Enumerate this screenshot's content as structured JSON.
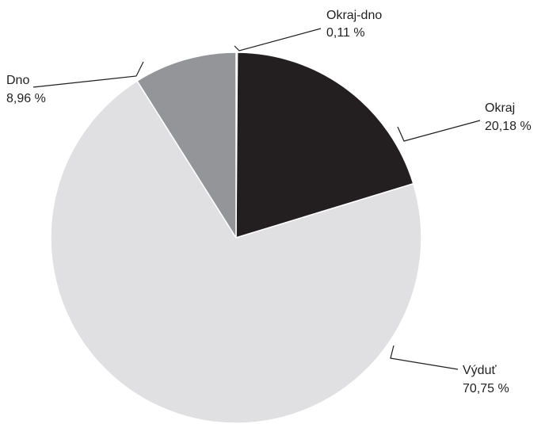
{
  "chart_data": {
    "type": "pie",
    "slices": [
      {
        "label": "Okraj-dno",
        "value_text": "0,11 %",
        "value": 0.11,
        "color": "#f2f2f2"
      },
      {
        "label": "Okraj",
        "value_text": "20,18 %",
        "value": 20.18,
        "color": "#231f20"
      },
      {
        "label": "Výduť",
        "value_text": "70,75 %",
        "value": 70.75,
        "color": "#e0e0e2"
      },
      {
        "label": "Dno",
        "value_text": "8,96 %",
        "value": 8.96,
        "color": "#939598"
      }
    ],
    "legend": "none",
    "start": "top",
    "direction": "clockwise",
    "stroke_color": "#ffffff",
    "leader_line_color": "#1f1f1f"
  }
}
